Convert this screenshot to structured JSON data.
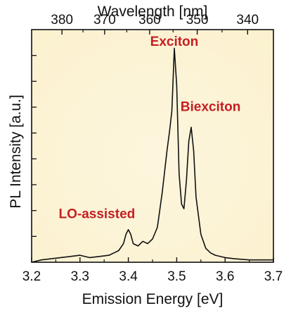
{
  "chart_data": {
    "type": "line",
    "xlabel": "Emission Energy [eV]",
    "ylabel": "PL Intensity [a.u.]",
    "x2label": "Wavelength [nm]",
    "xlim": [
      3.2,
      3.7
    ],
    "xticks": [
      3.2,
      3.3,
      3.4,
      3.5,
      3.6,
      3.7
    ],
    "xtick_labels": [
      "3.2",
      "3.3",
      "3.4",
      "3.5",
      "3.6",
      "3.7"
    ],
    "x2ticks": [
      380,
      370,
      360,
      350,
      340
    ],
    "x2tick_labels": [
      "380",
      "370",
      "360",
      "350",
      "340"
    ],
    "ylim": [
      0,
      1
    ],
    "y_ticks_unlabeled": 8,
    "grid": false,
    "background_color": "#fbf1cf",
    "line_color": "#111111",
    "annotation_color": "#c41f24",
    "annotations": [
      {
        "text": "Exciton",
        "x": 3.495,
        "y": 0.93
      },
      {
        "text": "Biexciton",
        "x": 3.57,
        "y": 0.65
      },
      {
        "text": "LO-assisted",
        "x": 3.335,
        "y": 0.19
      }
    ],
    "series": [
      {
        "x": [
          3.2,
          3.22,
          3.24,
          3.26,
          3.28,
          3.3,
          3.32,
          3.34,
          3.36,
          3.37,
          3.38,
          3.39,
          3.395,
          3.4,
          3.405,
          3.41,
          3.42,
          3.43,
          3.44,
          3.45,
          3.46,
          3.47,
          3.48,
          3.485,
          3.49,
          3.495,
          3.5,
          3.505,
          3.51,
          3.515,
          3.52,
          3.525,
          3.53,
          3.535,
          3.54,
          3.55,
          3.56,
          3.57,
          3.58,
          3.6,
          3.62,
          3.65,
          3.7
        ],
        "y": [
          0.0,
          0.01,
          0.015,
          0.02,
          0.025,
          0.03,
          0.02,
          0.025,
          0.03,
          0.04,
          0.05,
          0.08,
          0.12,
          0.14,
          0.12,
          0.08,
          0.07,
          0.09,
          0.08,
          0.1,
          0.15,
          0.3,
          0.48,
          0.56,
          0.65,
          0.92,
          0.76,
          0.38,
          0.25,
          0.23,
          0.35,
          0.52,
          0.58,
          0.48,
          0.28,
          0.12,
          0.06,
          0.04,
          0.03,
          0.02,
          0.015,
          0.01,
          0.01
        ]
      }
    ]
  }
}
